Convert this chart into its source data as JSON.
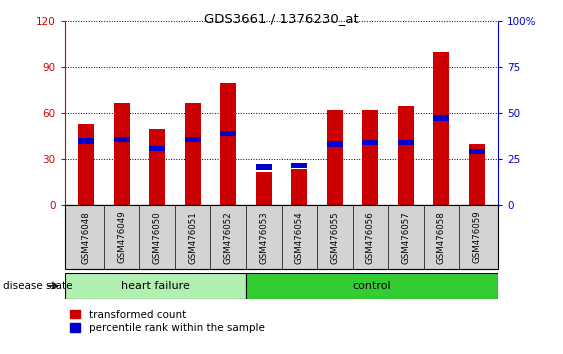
{
  "title": "GDS3661 / 1376230_at",
  "samples": [
    "GSM476048",
    "GSM476049",
    "GSM476050",
    "GSM476051",
    "GSM476052",
    "GSM476053",
    "GSM476054",
    "GSM476055",
    "GSM476056",
    "GSM476057",
    "GSM476058",
    "GSM476059"
  ],
  "red_values": [
    53,
    67,
    50,
    67,
    80,
    22,
    24,
    62,
    62,
    65,
    100,
    40
  ],
  "blue_values": [
    42,
    43,
    37,
    43,
    47,
    25,
    26,
    40,
    41,
    41,
    57,
    35
  ],
  "ylim_left": [
    0,
    120
  ],
  "ylim_right": [
    0,
    100
  ],
  "yticks_left": [
    0,
    30,
    60,
    90,
    120
  ],
  "yticks_right": [
    0,
    25,
    50,
    75,
    100
  ],
  "heart_failure_count": 5,
  "heart_failure_label": "heart failure",
  "control_label": "control",
  "disease_state_label": "disease state",
  "legend1": "transformed count",
  "legend2": "percentile rank within the sample",
  "red_color": "#cc0000",
  "blue_color": "#0000cc",
  "bar_width": 0.45,
  "heart_failure_bg": "#b2f0b2",
  "control_bg": "#33cc33",
  "tick_label_bg": "#d3d3d3",
  "right_axis_color": "#0000cc"
}
